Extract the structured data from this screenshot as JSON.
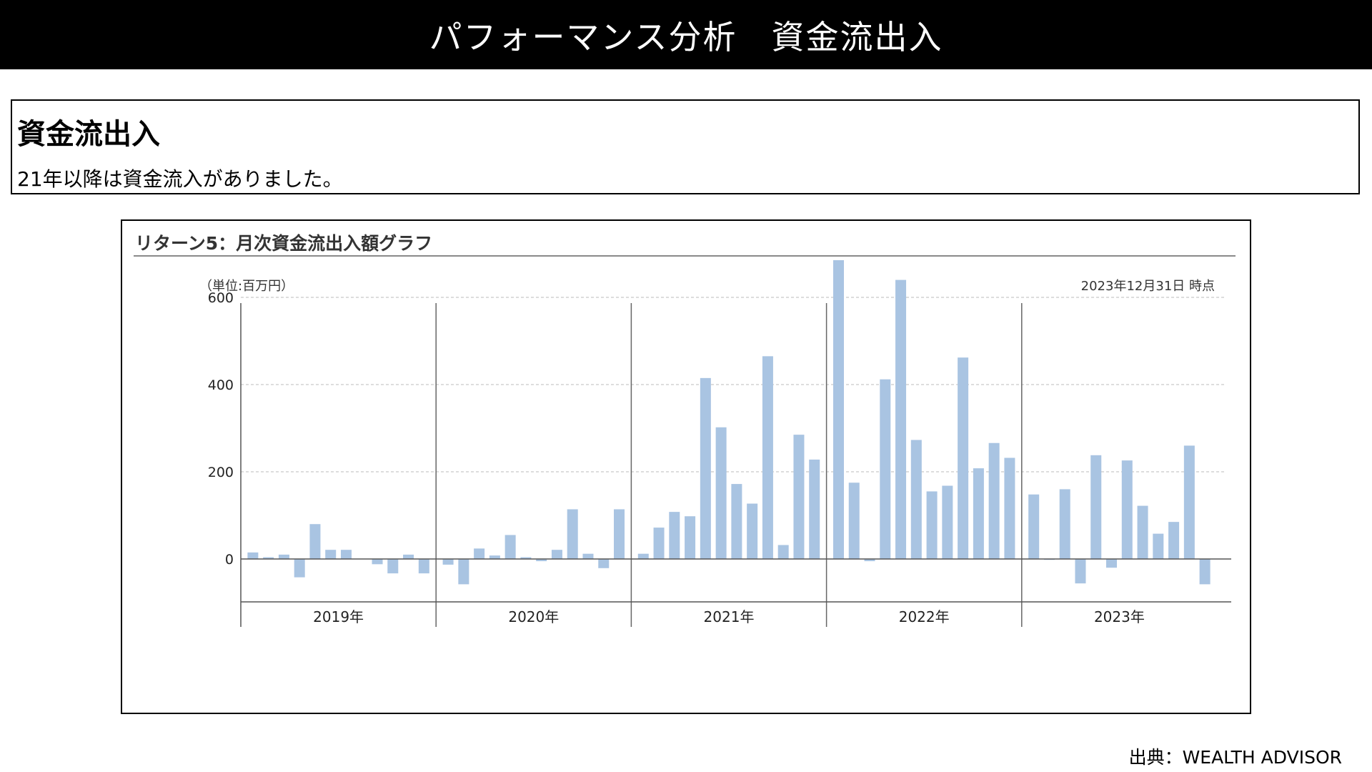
{
  "header": {
    "title": "パフォーマンス分析　資金流出入"
  },
  "summary": {
    "heading": "資金流出入",
    "text": "21年以降は資金流入がありました。"
  },
  "chart_panel": {
    "title": "リターン5：月次資金流出入額グラフ",
    "unit_label": "（単位:百万円）",
    "as_of": "2023年12月31日 時点"
  },
  "chart_data": {
    "type": "bar",
    "title": "リターン5：月次資金流出入額グラフ",
    "ylabel": "（単位:百万円）",
    "ylim": [
      -70,
      700
    ],
    "yticks": [
      0,
      200,
      400,
      600
    ],
    "grid": true,
    "bar_color": "#a9c4e2",
    "year_groups": [
      "2019年",
      "2020年",
      "2021年",
      "2022年",
      "2023年"
    ],
    "series": [
      {
        "values": [
          15,
          4,
          10,
          -42,
          80,
          21,
          21,
          0,
          -12,
          -33,
          10,
          -33,
          -13,
          -58,
          24,
          8,
          55,
          4,
          -5,
          21,
          114,
          12,
          -21,
          114,
          12,
          72,
          108,
          98,
          415,
          302,
          172,
          127,
          465,
          32,
          285,
          228,
          692,
          175,
          -5,
          412,
          640,
          273,
          155,
          168,
          462,
          208,
          266,
          232,
          148,
          -2,
          160,
          -56,
          238,
          -20,
          226,
          122,
          58,
          85,
          260,
          -58
        ]
      }
    ]
  },
  "footer": {
    "source": "出典：WEALTH ADVISOR"
  }
}
